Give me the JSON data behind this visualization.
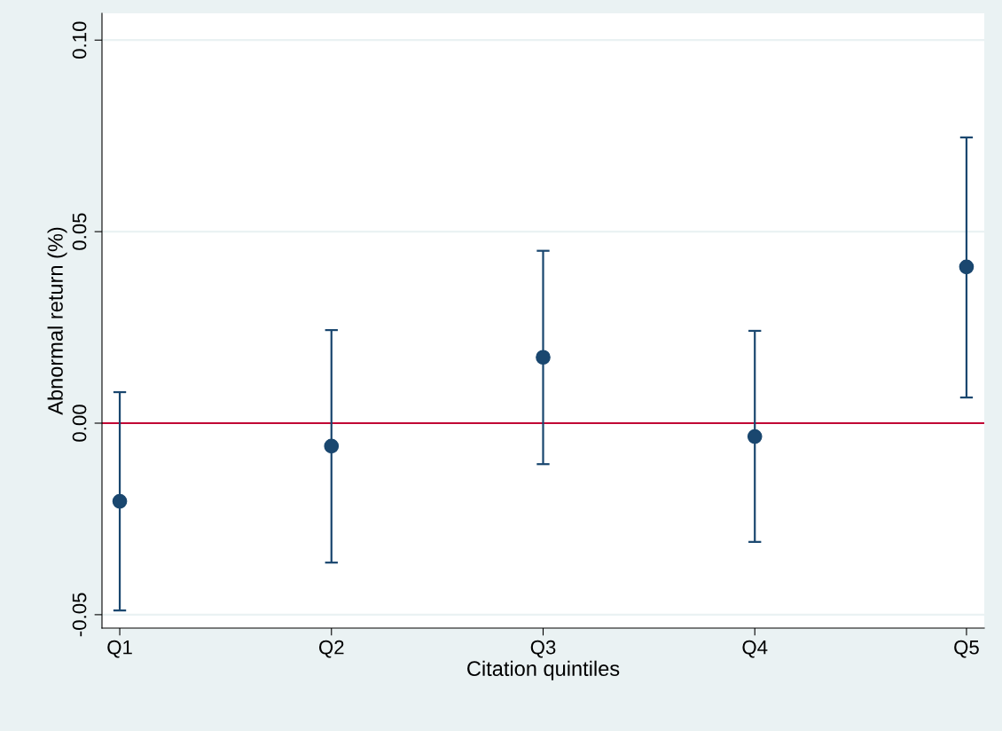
{
  "chart_data": {
    "type": "scatter",
    "xlabel": "Citation quintiles",
    "ylabel": "Abnormal return (%)",
    "categories": [
      "Q1",
      "Q2",
      "Q3",
      "Q4",
      "Q5"
    ],
    "series": [
      {
        "color": "#1a476f",
        "values": [
          -0.0204,
          -0.006,
          0.0172,
          -0.0035,
          0.0408
        ],
        "errors": [
          [
            -0.0489,
            0.0081
          ],
          [
            -0.0364,
            0.0243
          ],
          [
            -0.0107,
            0.045
          ],
          [
            -0.031,
            0.0241
          ],
          [
            0.0067,
            0.0746
          ]
        ]
      }
    ],
    "ylim": [
      -0.0535,
      0.107
    ],
    "yticks": [
      {
        "value": -0.05,
        "label": "-0.05"
      },
      {
        "value": 0,
        "label": "0.00"
      },
      {
        "value": 0.05,
        "label": "0.05"
      },
      {
        "value": 0.1,
        "label": "0.10"
      }
    ],
    "ref_lines": [
      {
        "axis": "y",
        "value": 0,
        "color": "#c10534",
        "line_style": "solid"
      }
    ],
    "grid": "y",
    "marker": "circle"
  }
}
